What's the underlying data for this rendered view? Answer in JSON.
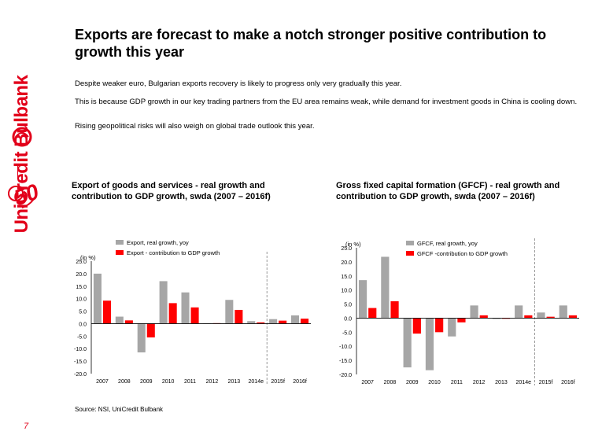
{
  "brand": {
    "name": "UniCredit Bulbank",
    "anniversary_mark": "50",
    "accent_color": "#e2001a"
  },
  "slide": {
    "title": "Exports are forecast to make a notch stronger positive contribution to growth this year",
    "paragraphs": [
      "Despite weaker euro, Bulgarian exports recovery is likely to progress only very gradually this year.",
      "This is because GDP growth in our key trading partners from  the EU area remains weak, while demand for investment goods in China is cooling down.",
      "Rising geopolitical risks will also weigh on global trade outlook this year."
    ],
    "source": "Source: NSI, UniCredit Bulbank",
    "page_number": "7"
  },
  "chart_titles": {
    "left": "Export of goods and services - real growth and contribution to GDP growth, swda (2007 – 2016f)",
    "right": "Gross fixed capital formation (GFCF) - real growth and contribution to GDP growth, swda (2007 – 2016f)"
  },
  "colors": {
    "series_gray": "#a6a6a6",
    "series_red": "#ff0000",
    "grid_dash": "#7f7f7f",
    "axis": "#000000"
  },
  "chart_data": [
    {
      "type": "bar",
      "title": "Export of goods and services - real growth and contribution to GDP growth, swda (2007 – 2016f)",
      "ylabel": "(in %)",
      "xlabel": "",
      "ylim": [
        -20,
        25
      ],
      "yticks": [
        "25.0",
        "20.0",
        "15.0",
        "10.0",
        "5.0",
        "0.0",
        "-5.0",
        "-10.0",
        "-15.0",
        "-20.0"
      ],
      "categories": [
        "2007",
        "2008",
        "2009",
        "2010",
        "2011",
        "2012",
        "2013",
        "2014e",
        "2015f",
        "2016f"
      ],
      "forecast_divider_after": "2014e",
      "legend_position": "top",
      "series": [
        {
          "name": "Export, real growth, yoy",
          "color": "#a6a6a6",
          "values": [
            20.0,
            2.8,
            -11.5,
            17.0,
            12.5,
            0.2,
            9.5,
            1.0,
            1.8,
            3.3
          ]
        },
        {
          "name": "Export - contribution to GDP growth",
          "color": "#ff0000",
          "values": [
            9.2,
            1.3,
            -5.5,
            8.2,
            6.5,
            0.2,
            5.5,
            0.5,
            1.2,
            2.0
          ]
        }
      ]
    },
    {
      "type": "bar",
      "title": "Gross fixed capital formation (GFCF) - real growth and contribution to GDP growth, swda (2007 – 2016f)",
      "ylabel": "(in %)",
      "xlabel": "",
      "ylim": [
        -20,
        25
      ],
      "yticks": [
        "25.0",
        "20.0",
        "15.0",
        "10.0",
        "5.0",
        "0.0",
        "-5.0",
        "-10.0",
        "-15.0",
        "-20.0"
      ],
      "categories": [
        "2007",
        "2008",
        "2009",
        "2010",
        "2011",
        "2012",
        "2013",
        "2014e",
        "2015f",
        "2016f"
      ],
      "forecast_divider_after": "2014e",
      "legend_position": "top",
      "series": [
        {
          "name": "GFCF, real growth, yoy",
          "color": "#a6a6a6",
          "values": [
            13.5,
            21.8,
            -17.5,
            -18.5,
            -6.5,
            4.5,
            -0.3,
            4.5,
            2.0,
            4.5
          ]
        },
        {
          "name": "GFCF -contribution to GDP growth",
          "color": "#ff0000",
          "values": [
            3.6,
            6.0,
            -5.5,
            -5.0,
            -1.5,
            1.0,
            -0.1,
            1.0,
            0.5,
            1.0
          ]
        }
      ]
    }
  ]
}
